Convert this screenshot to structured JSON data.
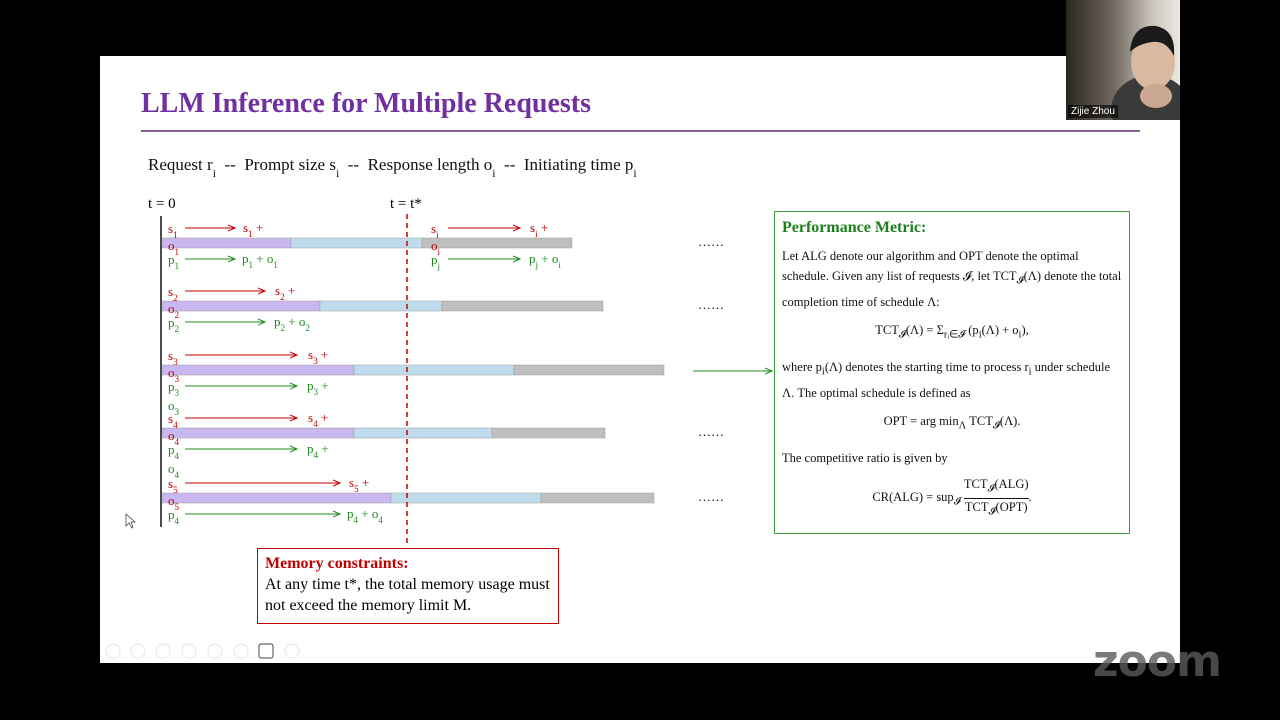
{
  "slide": {
    "title": "LLM Inference for Multiple Requests",
    "legend": [
      [
        "Request r",
        "i"
      ],
      "--",
      [
        "Prompt size s",
        "i"
      ],
      "--",
      [
        "Response length o",
        "i"
      ],
      "--",
      [
        "Initiating time p",
        "i"
      ]
    ],
    "time_start": "t = 0",
    "time_star": "t = t*",
    "rows": [
      {
        "s": [
          "s",
          "1"
        ],
        "s_end": [
          "s",
          "1",
          " +"
        ],
        "o": [
          "o",
          "1"
        ],
        "p": [
          "p",
          "1"
        ],
        "p_end": [
          "p",
          "1",
          " + o",
          "1"
        ],
        "ellipsis": "……",
        "right": {
          "s": [
            "s",
            "i"
          ],
          "s_end": [
            "s",
            "i",
            " +"
          ],
          "o": [
            "o",
            "i"
          ],
          "p": [
            "p",
            "j"
          ],
          "p_end": [
            "p",
            "j",
            " + o",
            "i"
          ]
        }
      },
      {
        "s": [
          "s",
          "2"
        ],
        "s_end": [
          "s",
          "2",
          " +"
        ],
        "o": [
          "o",
          "2"
        ],
        "p": [
          "p",
          "2"
        ],
        "p_end": [
          "p",
          "2",
          " + o",
          "2"
        ],
        "ellipsis": "……"
      },
      {
        "s": [
          "s",
          "3"
        ],
        "s_end": [
          "s",
          "3",
          " +"
        ],
        "o": [
          "o",
          "3"
        ],
        "p": [
          "p",
          "3"
        ],
        "p_end": [
          "p",
          "3",
          " +"
        ],
        "extra_o": [
          "o",
          "3"
        ]
      },
      {
        "s": [
          "s",
          "4"
        ],
        "s_end": [
          "s",
          "4",
          " +"
        ],
        "o": [
          "o",
          "4"
        ],
        "p": [
          "p",
          "4"
        ],
        "p_end": [
          "p",
          "4",
          " +"
        ],
        "ellipsis": "……",
        "extra_o": [
          "o",
          "4"
        ]
      },
      {
        "s": [
          "s",
          "5"
        ],
        "s_end": [
          "s",
          "5",
          " +"
        ],
        "o": [
          "o",
          "5"
        ],
        "p": [
          "p",
          "4"
        ],
        "p_end": [
          "p",
          "4",
          " + o",
          "4"
        ],
        "ellipsis": "……"
      }
    ],
    "metric": {
      "heading": "Performance Metric:",
      "intro": [
        "Let ALG denote our algorithm and OPT denote the optimal schedule. Given any list of requests 𝓘, let TCT",
        "𝓘",
        "(Λ) denote the total completion time of schedule Λ:"
      ],
      "eq_tct": [
        "TCT",
        "𝓘",
        "(Λ) = Σ",
        "rᵢ∈𝓘",
        " (p",
        "i",
        "(Λ) + o",
        "i",
        "),"
      ],
      "where": [
        "where p",
        "i",
        "(Λ) denotes the starting time to process r",
        "i",
        " under schedule Λ. The optimal schedule is defined as"
      ],
      "eq_opt": [
        "OPT = arg min",
        "Λ",
        " TCT",
        "𝓘",
        "(Λ)."
      ],
      "ratio_intro": "The competitive ratio is given by",
      "eq_cr": {
        "lhs": [
          "CR(ALG) = sup",
          "𝓘"
        ],
        "num": [
          "TCT",
          "𝓘",
          "(ALG)"
        ],
        "den": [
          "TCT",
          "𝓘",
          "(OPT)"
        ],
        "end": "."
      }
    },
    "memory": {
      "heading": "Memory constraints:",
      "text": "At any time t*, the total memory usage must not exceed the memory limit M."
    }
  },
  "overlay": {
    "participant": "Zijie Zhou",
    "watermark": "zoom"
  }
}
